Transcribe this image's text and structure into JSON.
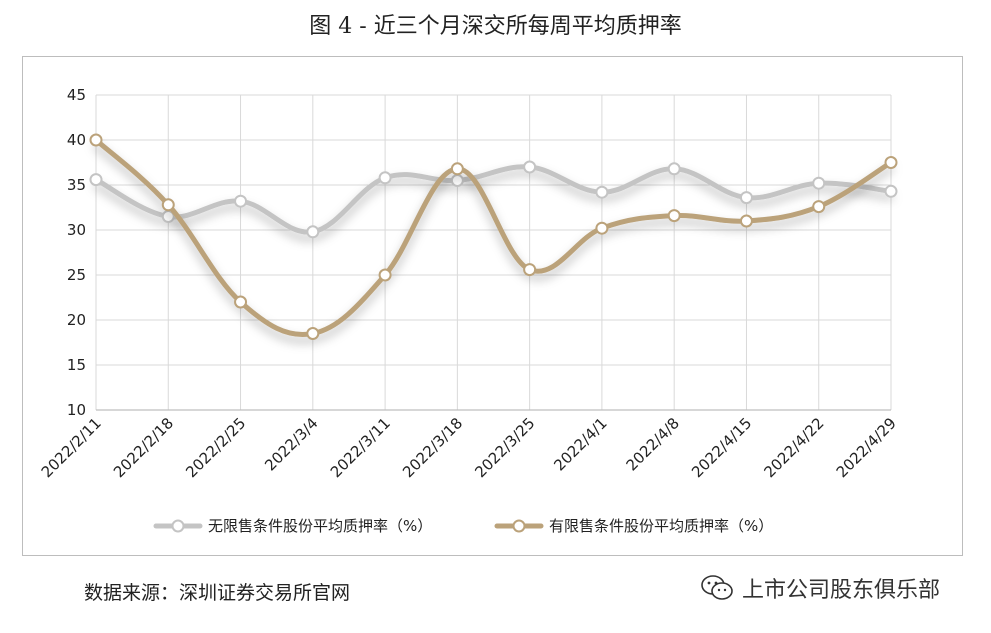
{
  "title": "图 4 -  近三个月深交所每周平均质押率",
  "source": "数据来源：深圳证券交易所官网",
  "watermark": {
    "icon": "wechat-icon",
    "text": "上市公司股东俱乐部"
  },
  "colors": {
    "unrestricted": "#c4c4c4",
    "restricted": "#bba27a",
    "grid": "#d9d9d9"
  },
  "chart_data": {
    "type": "line",
    "title": "",
    "xlabel": "",
    "ylabel": "",
    "ylim": [
      10,
      45
    ],
    "yticks": [
      10,
      15,
      20,
      25,
      30,
      35,
      40,
      45
    ],
    "grid": true,
    "legend_position": "bottom",
    "categories": [
      "2022/2/11",
      "2022/2/18",
      "2022/2/25",
      "2022/3/4",
      "2022/3/11",
      "2022/3/18",
      "2022/3/25",
      "2022/4/1",
      "2022/4/8",
      "2022/4/15",
      "2022/4/22",
      "2022/4/29"
    ],
    "series": [
      {
        "name": "无限售条件股份平均质押率（%）",
        "values": [
          35.6,
          31.5,
          33.2,
          29.8,
          35.8,
          35.5,
          37.0,
          34.2,
          36.8,
          33.6,
          35.2,
          34.3
        ]
      },
      {
        "name": "有限售条件股份平均质押率（%）",
        "values": [
          40.0,
          32.8,
          22.0,
          18.5,
          25.0,
          36.8,
          25.6,
          30.2,
          31.6,
          31.0,
          32.6,
          37.5
        ]
      }
    ]
  }
}
